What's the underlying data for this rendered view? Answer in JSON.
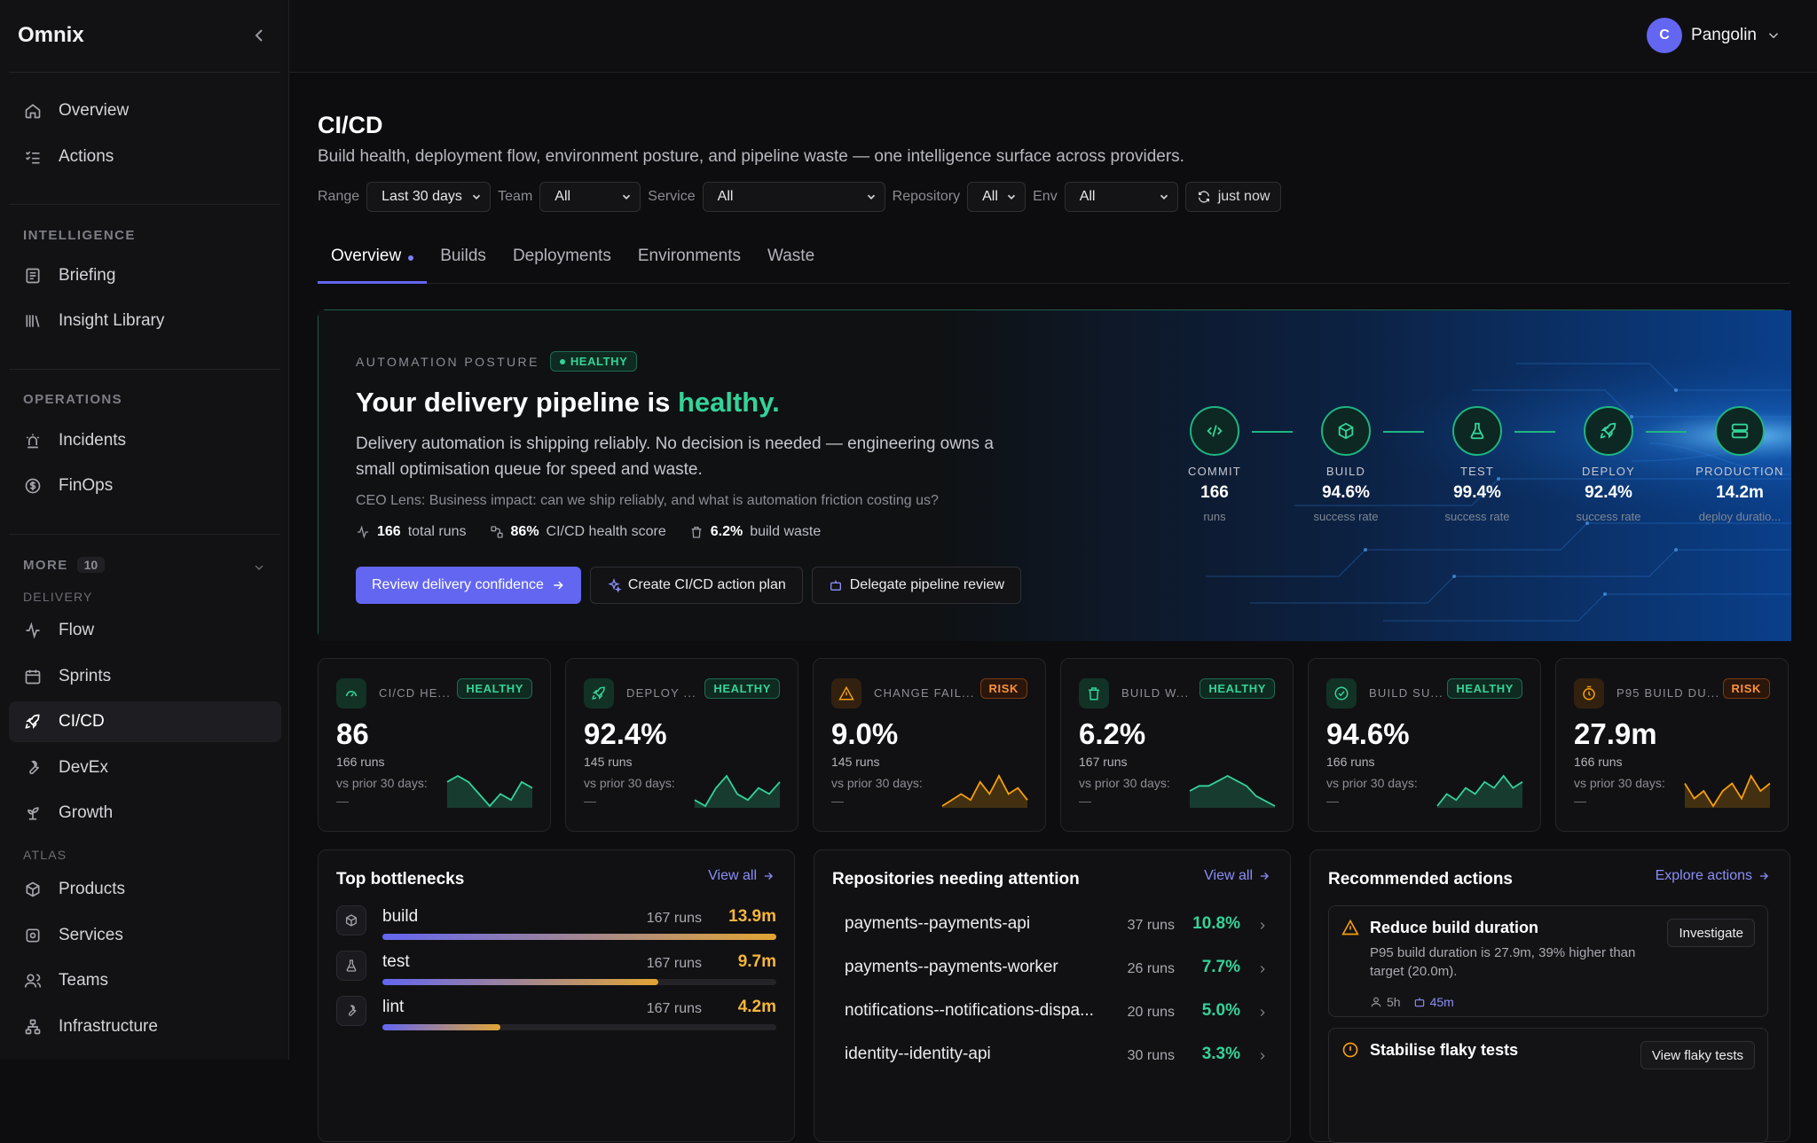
{
  "app": {
    "name": "Omnix"
  },
  "user": {
    "initial": "C",
    "name": "Pangolin"
  },
  "sidebar": {
    "top": [
      {
        "label": "Overview"
      },
      {
        "label": "Actions"
      }
    ],
    "intelligence_label": "INTELLIGENCE",
    "intelligence": [
      {
        "label": "Briefing"
      },
      {
        "label": "Insight Library"
      }
    ],
    "operations_label": "OPERATIONS",
    "operations": [
      {
        "label": "Incidents"
      },
      {
        "label": "FinOps"
      }
    ],
    "more_label": "MORE",
    "more_count": "10",
    "delivery_label": "DELIVERY",
    "delivery": [
      {
        "label": "Flow"
      },
      {
        "label": "Sprints"
      },
      {
        "label": "CI/CD"
      },
      {
        "label": "DevEx"
      },
      {
        "label": "Growth"
      }
    ],
    "atlas_label": "ATLAS",
    "atlas": [
      {
        "label": "Products"
      },
      {
        "label": "Services"
      },
      {
        "label": "Teams"
      },
      {
        "label": "Infrastructure"
      }
    ]
  },
  "page": {
    "title": "CI/CD",
    "subtitle": "Build health, deployment flow, environment posture, and pipeline waste — one intelligence surface across providers."
  },
  "filters": {
    "range_label": "Range",
    "range_value": "Last 30 days",
    "team_label": "Team",
    "team_value": "All",
    "service_label": "Service",
    "service_value": "All",
    "repository_label": "Repository",
    "repository_value": "All",
    "env_label": "Env",
    "env_value": "All",
    "refresh_label": "just now"
  },
  "tabs": [
    {
      "label": "Overview"
    },
    {
      "label": "Builds"
    },
    {
      "label": "Deployments"
    },
    {
      "label": "Environments"
    },
    {
      "label": "Waste"
    }
  ],
  "hero": {
    "eyebrow": "AUTOMATION POSTURE",
    "badge": "HEALTHY",
    "headline_prefix": "Your delivery pipeline is ",
    "headline_accent": "healthy.",
    "body": "Delivery automation is shipping reliably. No decision is needed — engineering owns a small optimisation queue for speed and waste.",
    "lens": "CEO Lens: Business impact: can we ship reliably, and what is automation friction costing us?",
    "stats": [
      {
        "value": "166",
        "label": "total runs"
      },
      {
        "value": "86%",
        "label": "CI/CD health score"
      },
      {
        "value": "6.2%",
        "label": "build waste"
      }
    ],
    "buttons": {
      "primary": "Review delivery confidence",
      "plan": "Create CI/CD action plan",
      "delegate": "Delegate pipeline review"
    },
    "stages": [
      {
        "label": "COMMIT",
        "value": "166",
        "sub": "runs",
        "icon": "code-icon"
      },
      {
        "label": "BUILD",
        "value": "94.6%",
        "sub": "success rate",
        "icon": "box-icon"
      },
      {
        "label": "TEST",
        "value": "99.4%",
        "sub": "success rate",
        "icon": "flask-icon"
      },
      {
        "label": "DEPLOY",
        "value": "92.4%",
        "sub": "success rate",
        "icon": "rocket-icon"
      },
      {
        "label": "PRODUCTION",
        "value": "14.2m",
        "sub": "deploy duratio...",
        "icon": "server-icon"
      }
    ]
  },
  "kpis": [
    {
      "label": "CI/CD HE...",
      "badge": "HEALTHY",
      "value": "86",
      "runs": "166 runs",
      "prior": "vs prior 30 days:",
      "delta": "—",
      "tone": "healthy",
      "spark": [
        6,
        7,
        6,
        4,
        2,
        4,
        3,
        6,
        5
      ]
    },
    {
      "label": "DEPLOY ...",
      "badge": "HEALTHY",
      "value": "92.4%",
      "runs": "145 runs",
      "prior": "vs prior 30 days:",
      "delta": "—",
      "tone": "healthy",
      "spark": [
        3,
        2,
        5,
        7,
        4,
        3,
        5,
        4,
        6
      ]
    },
    {
      "label": "CHANGE FAIL...",
      "badge": "RISK",
      "value": "9.0%",
      "runs": "145 runs",
      "prior": "vs prior 30 days:",
      "delta": "—",
      "tone": "risk",
      "spark": [
        1,
        2,
        3,
        2,
        5,
        3,
        6,
        3,
        4,
        2
      ]
    },
    {
      "label": "BUILD W...",
      "badge": "HEALTHY",
      "value": "6.2%",
      "runs": "167 runs",
      "prior": "vs prior 30 days:",
      "delta": "—",
      "tone": "healthy",
      "spark": [
        4,
        5,
        5,
        6,
        7,
        6,
        5,
        3,
        2,
        1
      ]
    },
    {
      "label": "BUILD SU...",
      "badge": "HEALTHY",
      "value": "94.6%",
      "runs": "166 runs",
      "prior": "vs prior 30 days:",
      "delta": "—",
      "tone": "healthy",
      "spark": [
        2,
        4,
        3,
        5,
        4,
        6,
        5,
        7,
        5,
        6
      ]
    },
    {
      "label": "P95 BUILD DU...",
      "badge": "RISK",
      "value": "27.9m",
      "runs": "166 runs",
      "prior": "vs prior 30 days:",
      "delta": "—",
      "tone": "risk",
      "spark": [
        5,
        3,
        4,
        2,
        4,
        5,
        3,
        6,
        4,
        5
      ]
    }
  ],
  "bottlenecks": {
    "title": "Top bottlenecks",
    "link": "View all",
    "items": [
      {
        "name": "build",
        "runs": "167 runs",
        "value": "13.9m",
        "level": 1.0,
        "icon": "box-icon"
      },
      {
        "name": "test",
        "runs": "167 runs",
        "value": "9.7m",
        "level": 0.7,
        "icon": "flask-icon"
      },
      {
        "name": "lint",
        "runs": "167 runs",
        "value": "4.2m",
        "level": 0.3,
        "icon": "wrench-icon"
      }
    ]
  },
  "repos": {
    "title": "Repositories needing attention",
    "link": "View all",
    "items": [
      {
        "name": "payments--payments-api",
        "runs": "37 runs",
        "rate": "10.8%"
      },
      {
        "name": "payments--payments-worker",
        "runs": "26 runs",
        "rate": "7.7%"
      },
      {
        "name": "notifications--notifications-dispa...",
        "runs": "20 runs",
        "rate": "5.0%"
      },
      {
        "name": "identity--identity-api",
        "runs": "30 runs",
        "rate": "3.3%"
      }
    ]
  },
  "recommended": {
    "title": "Recommended actions",
    "link": "Explore actions",
    "items": [
      {
        "title": "Reduce build duration",
        "desc": "P95 build duration is 27.9m, 39% higher than target (20.0m).",
        "button": "Investigate",
        "meta_time": "5h",
        "meta_dur": "45m"
      },
      {
        "title": "Stabilise flaky tests",
        "button": "View flaky tests"
      }
    ]
  },
  "colors": {
    "accent": "#6366f1",
    "healthy": "#34d399",
    "risk": "#f59e0b",
    "background": "#0d0d0f"
  }
}
